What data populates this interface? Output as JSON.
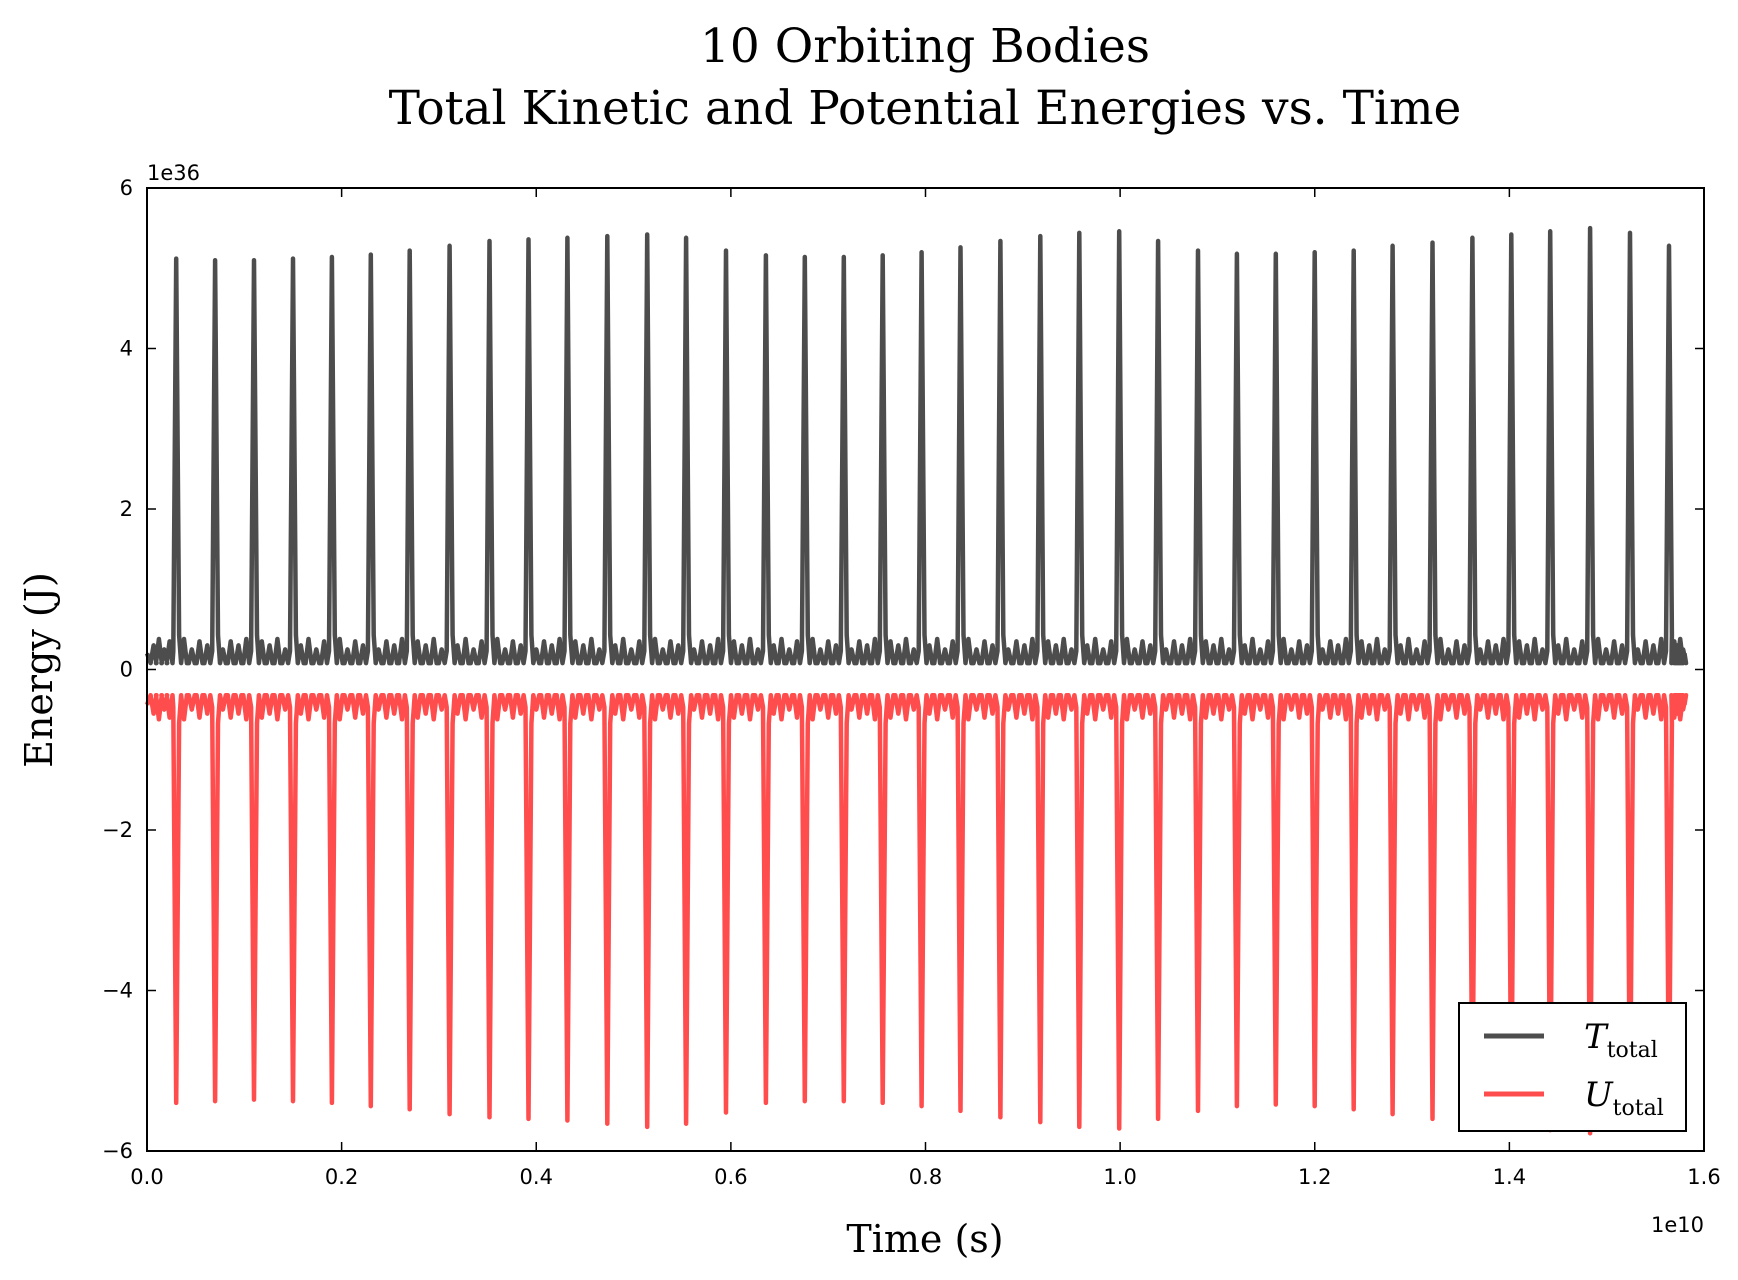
{
  "chart_data": {
    "type": "line",
    "title": "10 Orbiting Bodies",
    "subtitle": "Total Kinetic and Potential Energies vs. Time",
    "xlabel": "Time (s)",
    "ylabel": "Energy (J)",
    "x_multiplier": "1e10",
    "y_multiplier": "1e36",
    "xlim": [
      0.0,
      1.6
    ],
    "ylim": [
      -6,
      6
    ],
    "x_ticks": [
      0.0,
      0.2,
      0.4,
      0.6,
      0.8,
      1.0,
      1.2,
      1.4,
      1.6
    ],
    "x_tick_labels": [
      "0.0",
      "0.2",
      "0.4",
      "0.6",
      "0.8",
      "1.0",
      "1.2",
      "1.4",
      "1.6"
    ],
    "y_ticks": [
      -6,
      -4,
      -2,
      0,
      2,
      4,
      6
    ],
    "y_tick_labels": [
      "−6",
      "−4",
      "−2",
      "0",
      "2",
      "4",
      "6"
    ],
    "grid": false,
    "legend_position": "lower-right",
    "x_range": [
      0.0,
      1.58
    ],
    "baseline": {
      "kinetic": {
        "min": 0.08,
        "bumps": [
          0.35,
          0.3,
          0.38,
          0.25
        ]
      },
      "potential": {
        "max": -0.32,
        "dips": [
          -0.6,
          -0.55,
          -0.62,
          -0.5
        ]
      }
    },
    "series": [
      {
        "name": "T_total",
        "label_main": "T",
        "label_sub": "total",
        "color": "#4d4d4d",
        "peak_times": [
          0.03,
          0.07,
          0.11,
          0.15,
          0.19,
          0.23,
          0.27,
          0.311,
          0.352,
          0.392,
          0.432,
          0.473,
          0.514,
          0.554,
          0.595,
          0.636,
          0.676,
          0.716,
          0.756,
          0.796,
          0.836,
          0.877,
          0.918,
          0.958,
          0.999,
          1.039,
          1.08,
          1.12,
          1.16,
          1.2,
          1.24,
          1.28,
          1.321,
          1.362,
          1.402,
          1.442,
          1.483,
          1.524,
          1.564
        ],
        "peak_values": [
          5.12,
          5.1,
          5.1,
          5.12,
          5.14,
          5.17,
          5.22,
          5.28,
          5.34,
          5.36,
          5.38,
          5.4,
          5.42,
          5.38,
          5.22,
          5.16,
          5.14,
          5.14,
          5.16,
          5.2,
          5.26,
          5.34,
          5.4,
          5.44,
          5.46,
          5.34,
          5.22,
          5.18,
          5.18,
          5.2,
          5.22,
          5.28,
          5.32,
          5.38,
          5.42,
          5.46,
          5.5,
          5.44,
          5.28
        ]
      },
      {
        "name": "U_total",
        "label_main": "U",
        "label_sub": "total",
        "color": "#ff4d4d",
        "trough_times": [
          0.03,
          0.07,
          0.11,
          0.15,
          0.19,
          0.23,
          0.27,
          0.311,
          0.352,
          0.392,
          0.432,
          0.473,
          0.514,
          0.554,
          0.595,
          0.636,
          0.676,
          0.716,
          0.756,
          0.796,
          0.836,
          0.877,
          0.918,
          0.958,
          0.999,
          1.039,
          1.08,
          1.12,
          1.16,
          1.2,
          1.24,
          1.28,
          1.321,
          1.362,
          1.402,
          1.442,
          1.483,
          1.524,
          1.564
        ],
        "trough_values": [
          -5.4,
          -5.38,
          -5.36,
          -5.38,
          -5.4,
          -5.44,
          -5.48,
          -5.54,
          -5.58,
          -5.6,
          -5.62,
          -5.66,
          -5.7,
          -5.66,
          -5.52,
          -5.4,
          -5.38,
          -5.38,
          -5.4,
          -5.44,
          -5.5,
          -5.58,
          -5.64,
          -5.7,
          -5.72,
          -5.6,
          -5.5,
          -5.44,
          -5.42,
          -5.44,
          -5.48,
          -5.54,
          -5.6,
          -5.66,
          -5.7,
          -5.74,
          -5.78,
          -5.72,
          -5.58
        ]
      }
    ]
  }
}
